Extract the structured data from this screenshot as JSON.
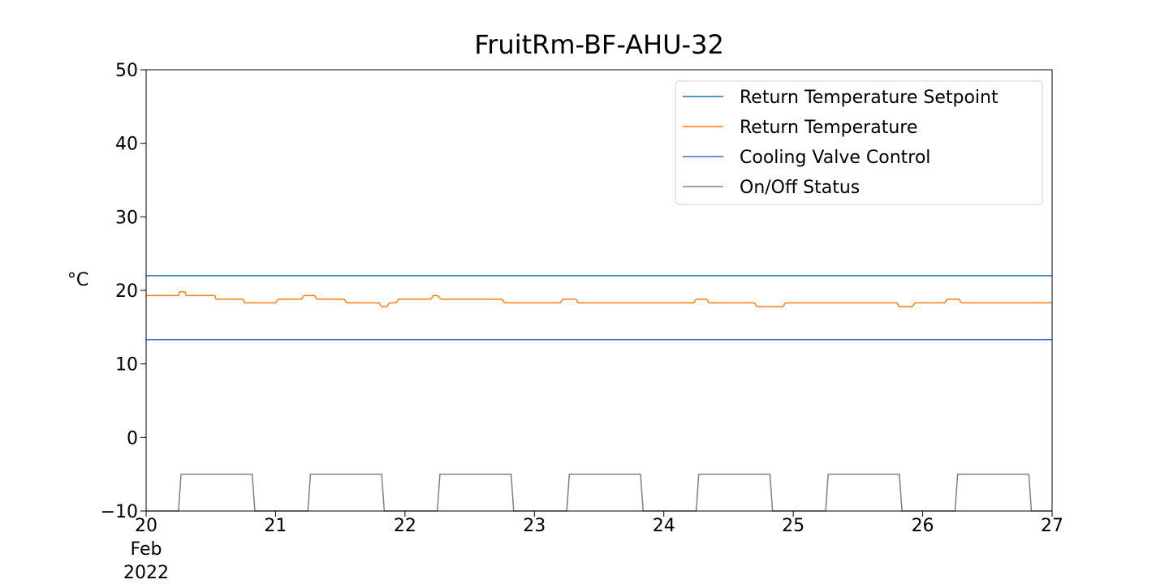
{
  "chart_data": {
    "type": "line",
    "title": "FruitRm-BF-AHU-32",
    "xlabel": "",
    "ylabel": "°C",
    "ylim": [
      -10,
      50
    ],
    "xlim": [
      20,
      27
    ],
    "yticks": [
      -10,
      0,
      10,
      20,
      30,
      40,
      50
    ],
    "ytick_labels": [
      "−10",
      "0",
      "10",
      "20",
      "30",
      "40",
      "50"
    ],
    "xticks": [
      20,
      21,
      22,
      23,
      24,
      25,
      26,
      27
    ],
    "xtick_labels": [
      "20",
      "21",
      "22",
      "23",
      "24",
      "25",
      "26",
      "27"
    ],
    "xtick_sublabels": [
      "Feb",
      "2022"
    ],
    "grid": false,
    "legend_position": "top-right",
    "series": [
      {
        "name": "Return Temperature Setpoint",
        "color": "#1f77b4",
        "x": [
          20,
          27
        ],
        "y": [
          22,
          22
        ]
      },
      {
        "name": "Return Temperature",
        "color": "#ff7f0e",
        "x": [
          20,
          20.25,
          20.26,
          20.3,
          20.31,
          20.53,
          20.54,
          20.75,
          20.76,
          21.0,
          21.02,
          21.2,
          21.22,
          21.3,
          21.32,
          21.53,
          21.55,
          21.8,
          21.82,
          21.86,
          21.88,
          21.93,
          21.95,
          22.2,
          22.22,
          22.25,
          22.28,
          22.75,
          22.77,
          23.2,
          23.22,
          23.32,
          23.34,
          24.23,
          24.25,
          24.33,
          24.35,
          24.7,
          24.72,
          24.92,
          24.94,
          25.8,
          25.82,
          25.92,
          25.94,
          26.17,
          26.19,
          26.28,
          26.3,
          27.0
        ],
        "y": [
          19.3,
          19.3,
          19.8,
          19.8,
          19.3,
          19.3,
          18.8,
          18.8,
          18.3,
          18.3,
          18.8,
          18.8,
          19.3,
          19.3,
          18.8,
          18.8,
          18.3,
          18.3,
          17.8,
          17.8,
          18.3,
          18.3,
          18.8,
          18.8,
          19.3,
          19.3,
          18.8,
          18.8,
          18.3,
          18.3,
          18.8,
          18.8,
          18.3,
          18.3,
          18.8,
          18.8,
          18.3,
          18.3,
          17.8,
          17.8,
          18.3,
          18.3,
          17.8,
          17.8,
          18.3,
          18.3,
          18.8,
          18.8,
          18.3,
          18.3
        ]
      },
      {
        "name": "Cooling Valve Control",
        "color": "#3a6fd8",
        "x": [
          20,
          27
        ],
        "y": [
          13.3,
          13.3
        ]
      },
      {
        "name": "On/Off Status",
        "color": "#808080",
        "x": [
          20,
          20.25,
          20.27,
          20.82,
          20.84,
          21.25,
          21.27,
          21.82,
          21.84,
          22.25,
          22.27,
          22.82,
          22.84,
          23.25,
          23.27,
          23.82,
          23.84,
          24.25,
          24.27,
          24.82,
          24.84,
          25.25,
          25.27,
          25.82,
          25.84,
          26.25,
          26.27,
          26.82,
          26.84,
          27.0
        ],
        "y": [
          -10,
          -10,
          -5,
          -5,
          -10,
          -10,
          -5,
          -5,
          -10,
          -10,
          -5,
          -5,
          -10,
          -10,
          -5,
          -5,
          -10,
          -10,
          -5,
          -5,
          -10,
          -10,
          -5,
          -5,
          -10,
          -10,
          -5,
          -5,
          -10,
          -10
        ]
      }
    ]
  }
}
